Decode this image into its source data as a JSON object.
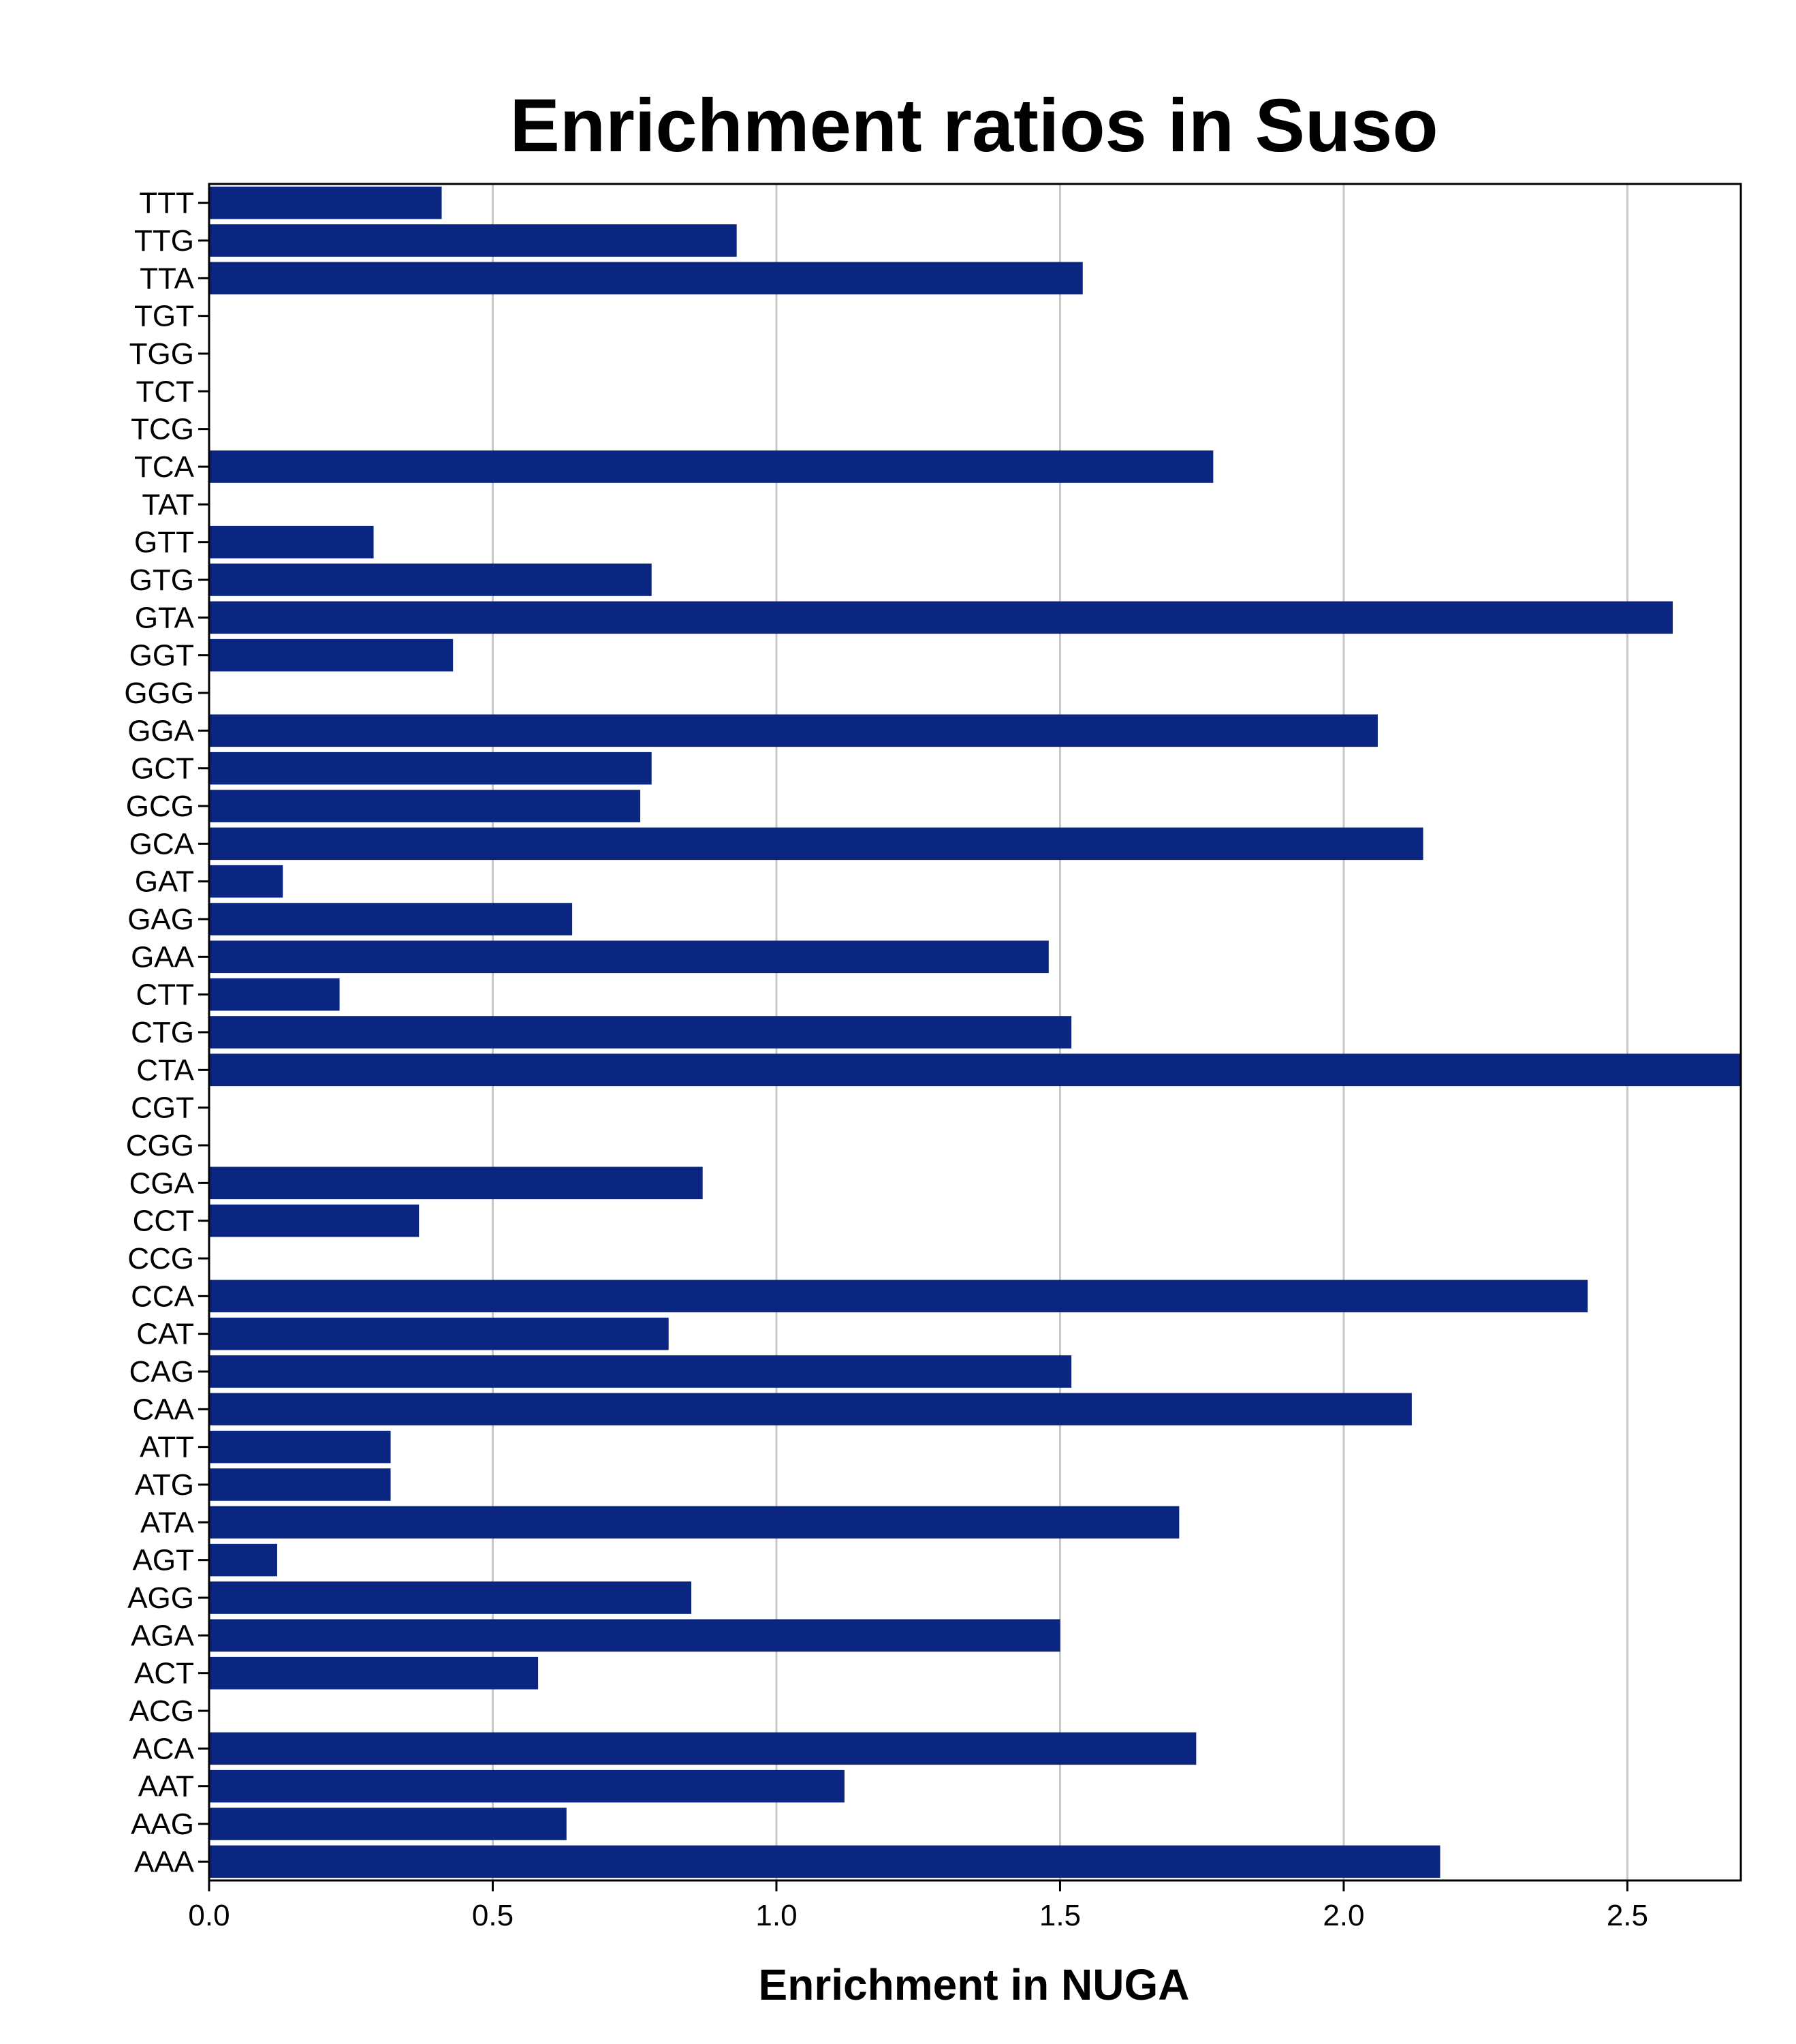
{
  "chart_data": {
    "type": "bar",
    "orientation": "horizontal",
    "title": "Enrichment ratios in Suso",
    "xlabel": "Enrichment in NUGA",
    "ylabel": "",
    "xlim": [
      0,
      2.7
    ],
    "x_ticks": [
      "0.0",
      "0.5",
      "1.0",
      "1.5",
      "2.0",
      "2.5"
    ],
    "grid": "vertical",
    "bar_color": "#0b2680",
    "categories": [
      "TTT",
      "TTG",
      "TTA",
      "TGT",
      "TGG",
      "TCT",
      "TCG",
      "TCA",
      "TAT",
      "GTT",
      "GTG",
      "GTA",
      "GGT",
      "GGG",
      "GGA",
      "GCT",
      "GCG",
      "GCA",
      "GAT",
      "GAG",
      "GAA",
      "CTT",
      "CTG",
      "CTA",
      "CGT",
      "CGG",
      "CGA",
      "CCT",
      "CCG",
      "CCA",
      "CAT",
      "CAG",
      "CAA",
      "ATT",
      "ATG",
      "ATA",
      "AGT",
      "AGG",
      "AGA",
      "ACT",
      "ACG",
      "ACA",
      "AAT",
      "AAG",
      "AAA"
    ],
    "values": [
      0.41,
      0.93,
      1.54,
      0,
      0,
      0,
      0,
      1.77,
      0,
      0.29,
      0.78,
      2.58,
      0.43,
      0,
      2.06,
      0.78,
      0.76,
      2.14,
      0.13,
      0.64,
      1.48,
      0.23,
      1.52,
      2.7,
      0,
      0,
      0.87,
      0.37,
      0,
      2.43,
      0.81,
      1.52,
      2.12,
      0.32,
      0.32,
      1.71,
      0.12,
      0.85,
      1.5,
      0.58,
      0,
      1.74,
      1.12,
      0.63,
      2.17
    ]
  }
}
